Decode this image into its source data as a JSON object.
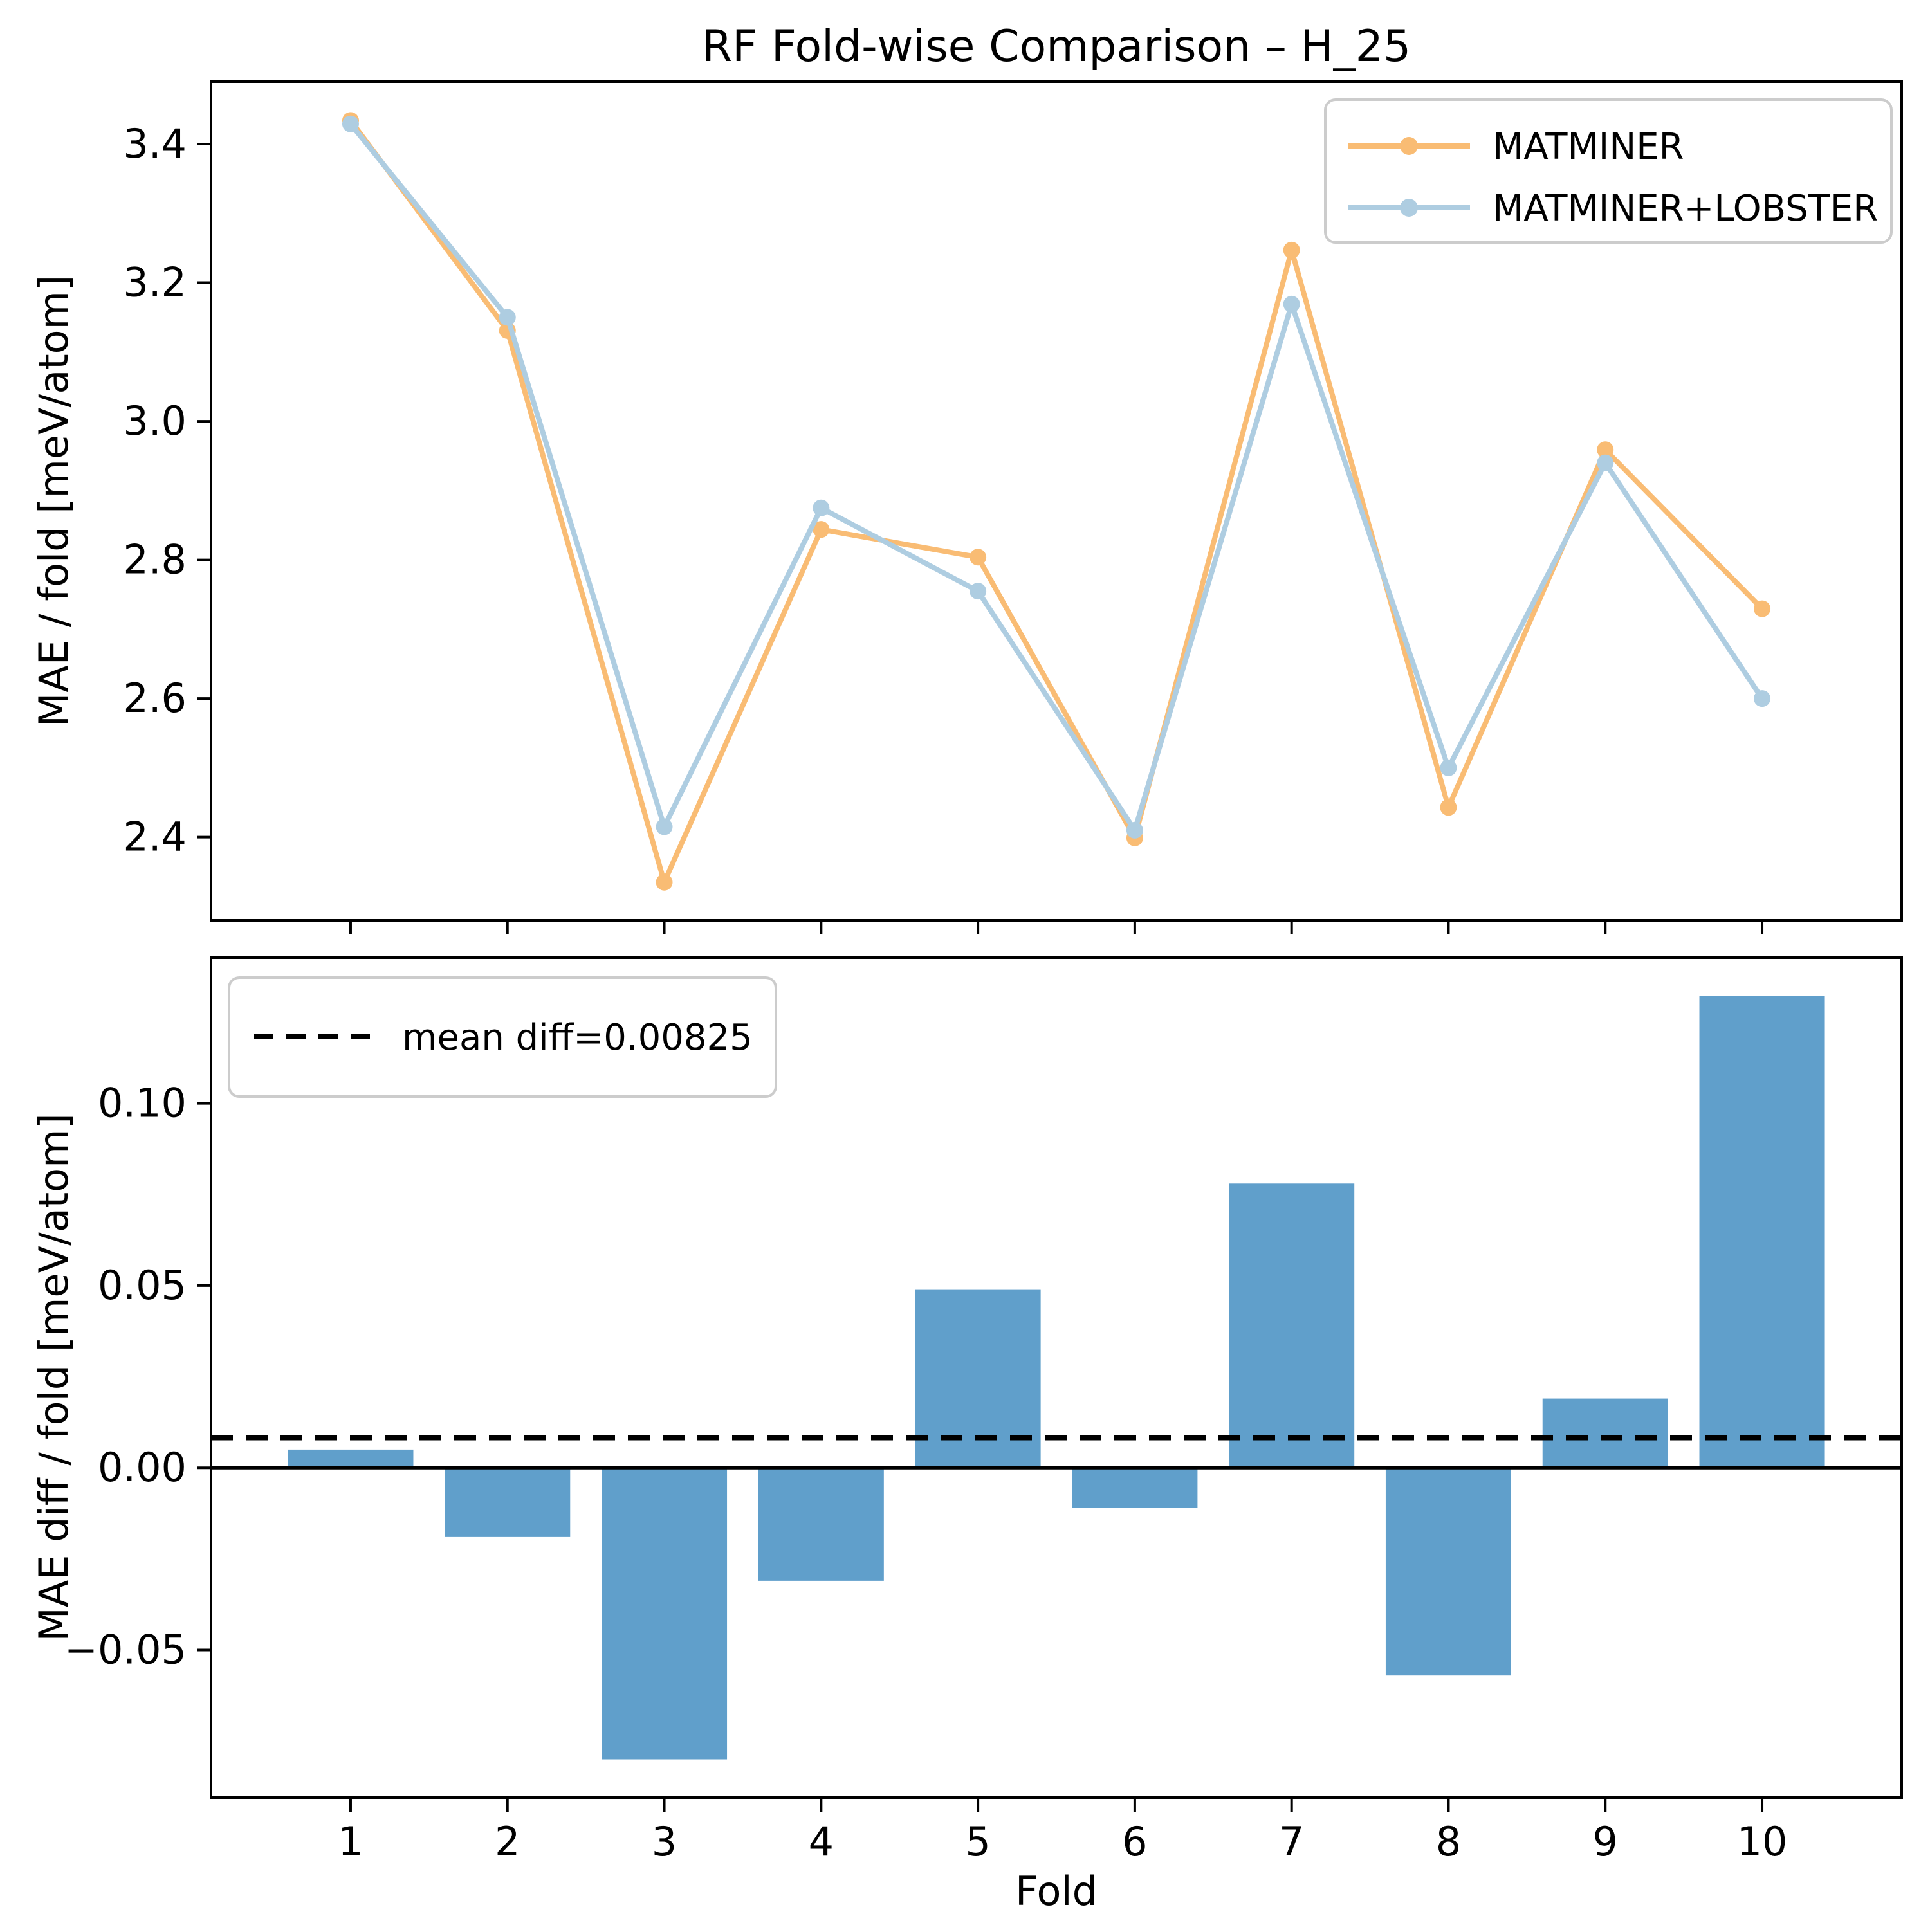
{
  "figure": {
    "title": "RF Fold-wise Comparison – H_25",
    "xlabel": "Fold"
  },
  "colors": {
    "matminer_line": "#f9bc74",
    "lobster_line": "#aecde1",
    "bar_fill": "#609fcb",
    "mean_line": "#000000",
    "legend_border": "#cccccc",
    "spine": "#000000"
  },
  "chart_data": [
    {
      "type": "line",
      "title": "RF Fold-wise Comparison – H_25",
      "xlabel": "",
      "ylabel": "MAE / fold [meV/atom]",
      "x": [
        1,
        2,
        3,
        4,
        5,
        6,
        7,
        8,
        9,
        10
      ],
      "series": [
        {
          "name": "MATMINER",
          "color": "#f9bc74",
          "values": [
            3.434,
            3.131,
            2.335,
            2.844,
            2.804,
            2.399,
            3.247,
            2.443,
            2.959,
            2.7295
          ]
        },
        {
          "name": "MATMINER+LOBSTER",
          "color": "#aecde1",
          "values": [
            3.429,
            3.15,
            2.415,
            2.875,
            2.755,
            2.41,
            3.169,
            2.5,
            2.94,
            2.6
          ]
        }
      ],
      "xlim": [
        0.11,
        10.89
      ],
      "ylim": [
        2.28,
        3.49
      ],
      "yticks": [
        2.4,
        2.6,
        2.8,
        3.0,
        3.2,
        3.4
      ],
      "xticks": [
        1,
        2,
        3,
        4,
        5,
        6,
        7,
        8,
        9,
        10
      ],
      "x_tick_labels_shown": false,
      "grid": false,
      "legend_position": "upper right",
      "marker": "o"
    },
    {
      "type": "bar",
      "title": "",
      "xlabel": "Fold",
      "ylabel": "MAE diff / fold [meV/atom]",
      "categories": [
        1,
        2,
        3,
        4,
        5,
        6,
        7,
        8,
        9,
        10
      ],
      "values": [
        0.005,
        -0.019,
        -0.08,
        -0.031,
        0.049,
        -0.011,
        0.078,
        -0.057,
        0.019,
        0.1295
      ],
      "bar_color": "#609fcb",
      "bar_width": 0.8,
      "mean_diff": 0.00825,
      "mean_line_label": "mean diff=0.00825",
      "mean_line_style": "dashed",
      "zero_line": 0.0,
      "xlim": [
        0.11,
        10.89
      ],
      "ylim": [
        -0.0905,
        0.14
      ],
      "yticks": [
        -0.05,
        0.0,
        0.05,
        0.1
      ],
      "grid": false,
      "legend_position": "upper left"
    }
  ]
}
